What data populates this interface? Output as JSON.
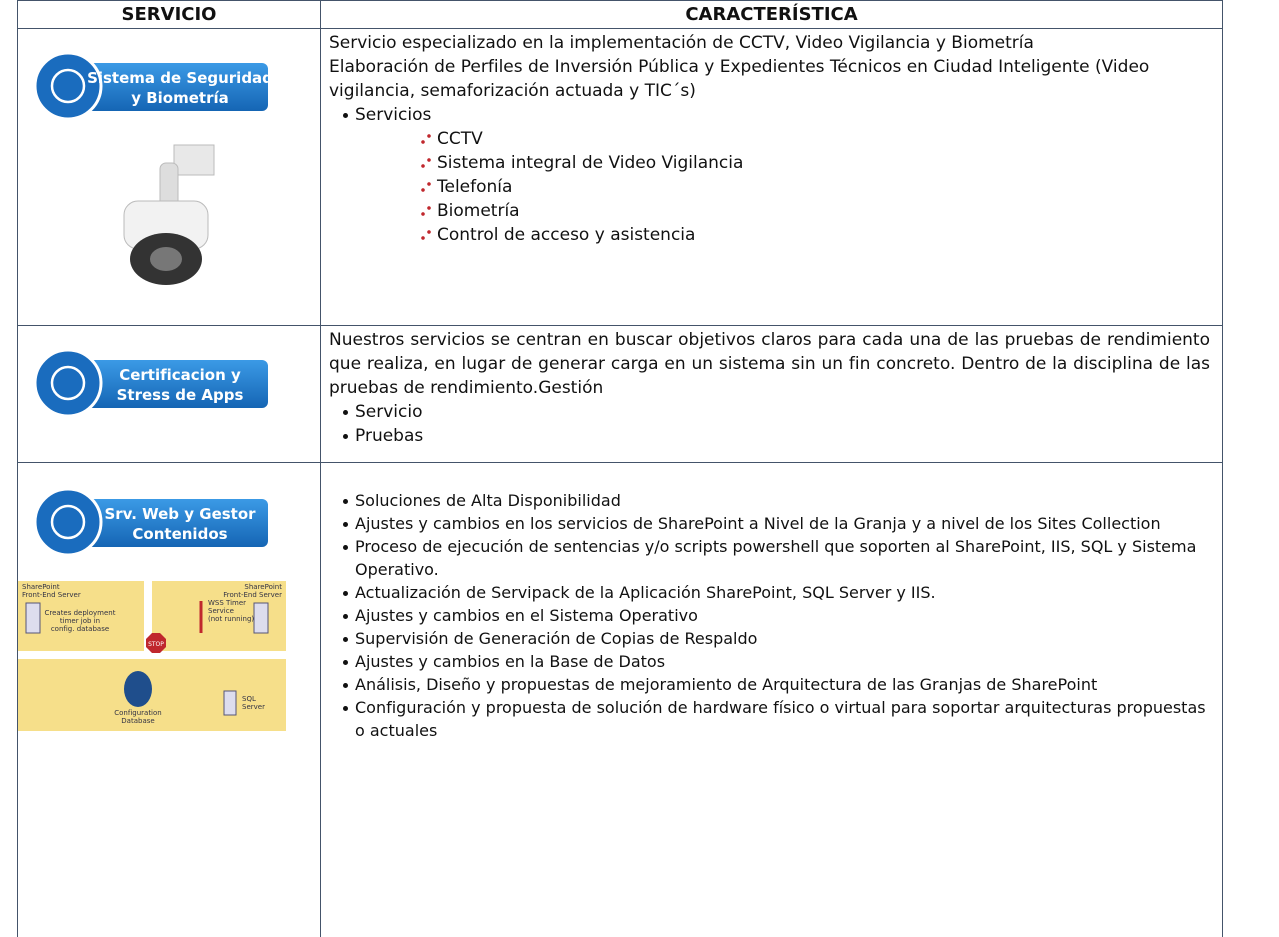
{
  "header": {
    "col1": "SERVICIO",
    "col2": "CARACTERÍSTICA"
  },
  "rows": [
    {
      "badge": [
        "Sistema de Seguridad",
        "y Biometría"
      ],
      "paragraphs": [
        "Servicio especializado en la implementación de CCTV, Video Vigilancia y Biometría",
        "Elaboración de Perfiles de Inversión Pública y Expedientes Técnicos en Ciudad Inteligente (Video vigilancia, semaforización actuada y TIC´s)"
      ],
      "bullets": [
        {
          "text": "Servicios",
          "sub": [
            "CCTV",
            "Sistema integral de Video Vigilancia",
            "Telefonía",
            "Biometría",
            "Control de acceso y asistencia"
          ]
        }
      ]
    },
    {
      "badge": [
        "Certificacion y",
        "Stress de Apps"
      ],
      "paragraphs": [
        "Nuestros servicios se centran en buscar objetivos claros para cada una de las pruebas de rendimiento que realiza, en lugar de generar carga en un sistema sin un fin concreto. Dentro de la disciplina de las pruebas de rendimiento.Gestión"
      ],
      "bullets": [
        {
          "text": "Servicio"
        },
        {
          "text": "Pruebas"
        }
      ]
    },
    {
      "badge": [
        "Srv. Web y Gestor",
        "Contenidos"
      ],
      "diagram": {
        "server_left": [
          "SharePoint",
          "Front-End Server"
        ],
        "note": [
          "Creates deployment",
          "timer job in",
          "config. database"
        ],
        "stop": "STOP",
        "server_right": [
          "SharePoint",
          "Front-End Server"
        ],
        "timer": [
          "WSS Timer",
          "Service",
          "(not running)"
        ],
        "database": [
          "Configuration",
          "Database"
        ],
        "sql": [
          "SQL",
          "Server"
        ]
      },
      "paragraphs": [],
      "bullets": [
        {
          "text": "Soluciones de Alta Disponibilidad"
        },
        {
          "text": "Ajustes y cambios en los servicios de SharePoint a Nivel de la Granja y a nivel de los Sites Collection"
        },
        {
          "text": "Proceso de ejecución de sentencias y/o scripts powershell que soporten al SharePoint, IIS, SQL y Sistema Operativo."
        },
        {
          "text": "Actualización de Servipack de la Aplicación SharePoint, SQL Server y IIS."
        },
        {
          "text": "Ajustes y cambios en el Sistema Operativo"
        },
        {
          "text": "Supervisión de Generación de Copias de Respaldo"
        },
        {
          "text": "Ajustes y cambios en la Base de Datos"
        },
        {
          "text": "Análisis, Diseño y propuestas de mejoramiento de Arquitectura de las Granjas de SharePoint"
        },
        {
          "text": "Configuración y propuesta de solución de hardware físico o virtual para soportar arquitecturas propuestas o actuales"
        }
      ]
    }
  ]
}
